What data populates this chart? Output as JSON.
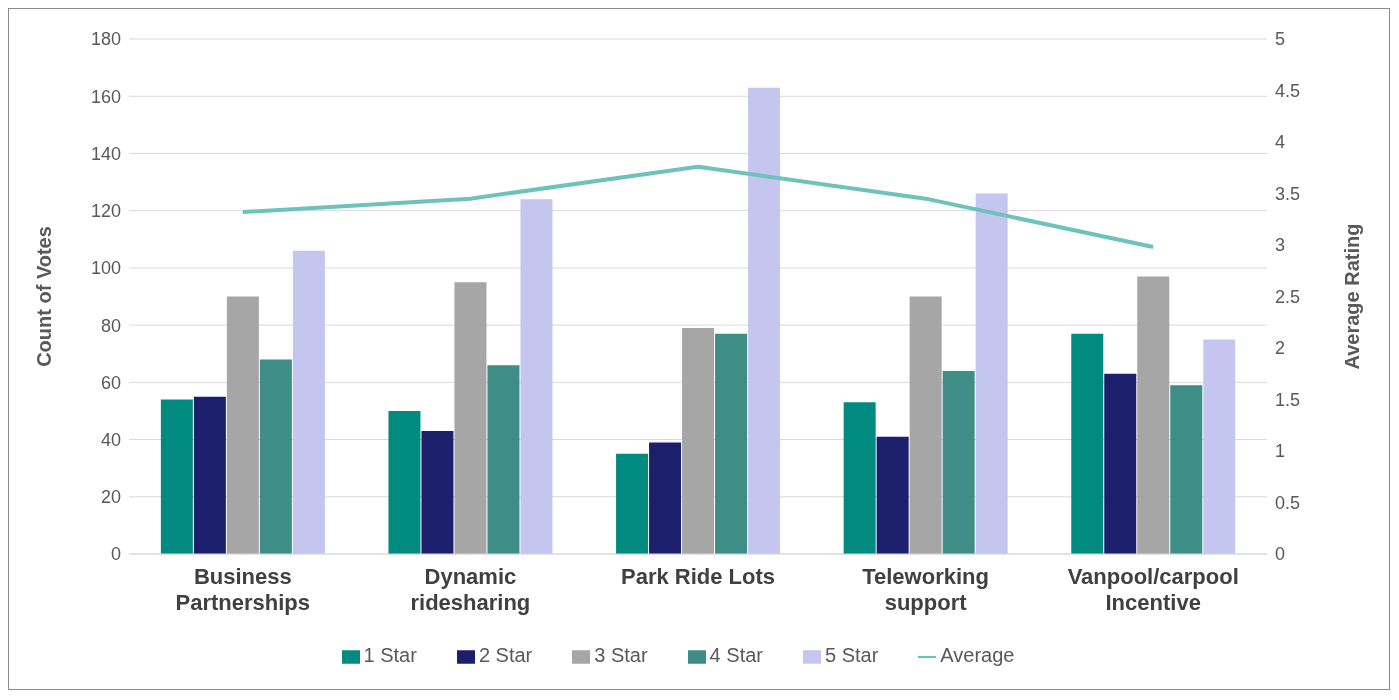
{
  "chart_data": {
    "type": "bar",
    "categories": [
      "Business Partnerships",
      "Dynamic ridesharing",
      "Park Ride Lots",
      "Teleworking support",
      "Vanpool/carpool Incentive"
    ],
    "ylabel": "Count of Votes",
    "y2label": "Average Rating",
    "ylim": [
      0,
      180
    ],
    "yticks": [
      0,
      20,
      40,
      60,
      80,
      100,
      120,
      140,
      160,
      180
    ],
    "y2lim": [
      0,
      5
    ],
    "y2ticks": [
      0,
      0.5,
      1,
      1.5,
      2,
      2.5,
      3,
      3.5,
      4,
      4.5,
      5
    ],
    "grid": "y",
    "legend": "bottom",
    "marker": "none",
    "line_style": "solid",
    "series": [
      {
        "name": "1 Star",
        "color": "#008a80",
        "values": [
          54,
          50,
          35,
          53,
          77
        ]
      },
      {
        "name": "2 Star",
        "color": "#1b1f6c",
        "values": [
          55,
          43,
          39,
          41,
          63
        ]
      },
      {
        "name": "3 Star",
        "color": "#a6a6a6",
        "values": [
          90,
          95,
          79,
          90,
          97
        ]
      },
      {
        "name": "4 Star",
        "color": "#3e8d87",
        "values": [
          68,
          66,
          77,
          64,
          59
        ]
      },
      {
        "name": "5 Star",
        "color": "#c5c6ef",
        "values": [
          106,
          124,
          163,
          126,
          75
        ]
      },
      {
        "name": "Average",
        "type": "line",
        "axis": "y2",
        "color": "#6dc3bc",
        "values": [
          3.32,
          3.45,
          3.76,
          3.45,
          2.98
        ]
      }
    ]
  }
}
